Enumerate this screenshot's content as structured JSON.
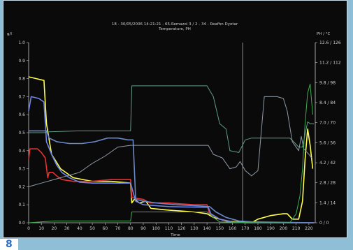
{
  "figure_number": "8",
  "chart_data": {
    "type": "line",
    "title": "18 - 30/05/2006 14:21:21 - 65-Remazol 3 / 2 - 34 - Reafhn Dyotar",
    "subtitle": "Temperature, PH",
    "xlabel": "Time",
    "ylabel_left": "g/l",
    "ylabel_right": "PH / °C",
    "xlim": [
      0,
      225
    ],
    "ylim": [
      0,
      1.0
    ],
    "grid": false,
    "x_ticks": [
      "0",
      "10",
      "20",
      "30",
      "40",
      "50",
      "60",
      "70",
      "80",
      "90",
      "100",
      "110",
      "120",
      "130",
      "140",
      "150",
      "160",
      "170",
      "180",
      "190",
      "200",
      "210",
      "220"
    ],
    "y_ticks_left": [
      "0.0",
      "0.1",
      "0.2",
      "0.3",
      "0.4",
      "0.5",
      "0.6",
      "0.7",
      "0.8",
      "0.9",
      "1.0"
    ],
    "y_ticks_right": [
      "0 / 0",
      "1.4 / 14",
      "2.8 / 28",
      "4.2 / 42",
      "5.6 / 56",
      "7.0 / 70",
      "8.4 / 84",
      "9.8 / 98",
      "11.2 / 112",
      "12.6 / 126"
    ],
    "y_ticks_right_values": [
      0,
      0.111,
      0.222,
      0.333,
      0.444,
      0.556,
      0.667,
      0.778,
      0.889,
      1.0
    ],
    "cursor_x": 168,
    "colors": {
      "background": "#0a0a0a",
      "axis": "#c8c8c8",
      "text": "#d0d0d0"
    },
    "series": [
      {
        "color": "#ffff4a",
        "points": [
          [
            0,
            0.81
          ],
          [
            6,
            0.8
          ],
          [
            12,
            0.79
          ],
          [
            14,
            0.55
          ],
          [
            18,
            0.38
          ],
          [
            25,
            0.3
          ],
          [
            35,
            0.25
          ],
          [
            50,
            0.23
          ],
          [
            65,
            0.23
          ],
          [
            80,
            0.22
          ],
          [
            81,
            0.11
          ],
          [
            83,
            0.13
          ],
          [
            87,
            0.11
          ],
          [
            92,
            0.12
          ],
          [
            96,
            0.08
          ],
          [
            110,
            0.07
          ],
          [
            130,
            0.06
          ],
          [
            140,
            0.05
          ],
          [
            145,
            0.03
          ],
          [
            155,
            0.01
          ],
          [
            175,
            0.0
          ],
          [
            180,
            0.02
          ],
          [
            190,
            0.04
          ],
          [
            200,
            0.05
          ],
          [
            203,
            0.05
          ],
          [
            207,
            0.02
          ],
          [
            212,
            0.02
          ],
          [
            215,
            0.12
          ],
          [
            217,
            0.35
          ],
          [
            219,
            0.52
          ],
          [
            221,
            0.43
          ],
          [
            223,
            0.3
          ]
        ]
      },
      {
        "color": "#e83030",
        "points": [
          [
            0,
            0.35
          ],
          [
            1,
            0.41
          ],
          [
            7,
            0.41
          ],
          [
            10,
            0.39
          ],
          [
            13,
            0.36
          ],
          [
            15,
            0.25
          ],
          [
            16,
            0.28
          ],
          [
            19,
            0.28
          ],
          [
            22,
            0.26
          ],
          [
            26,
            0.24
          ],
          [
            35,
            0.23
          ],
          [
            50,
            0.23
          ],
          [
            65,
            0.24
          ],
          [
            80,
            0.24
          ],
          [
            81,
            0.14
          ],
          [
            90,
            0.13
          ],
          [
            95,
            0.11
          ],
          [
            110,
            0.11
          ],
          [
            130,
            0.1
          ],
          [
            140,
            0.1
          ],
          [
            142,
            0.05
          ],
          [
            150,
            0.02
          ],
          [
            160,
            0.005
          ],
          [
            170,
            0.0
          ],
          [
            200,
            0.0
          ],
          [
            224,
            0.0
          ]
        ]
      },
      {
        "color": "#6f86e8",
        "points": [
          [
            0,
            0.62
          ],
          [
            2,
            0.7
          ],
          [
            8,
            0.69
          ],
          [
            12,
            0.67
          ],
          [
            14,
            0.45
          ],
          [
            18,
            0.38
          ],
          [
            22,
            0.32
          ],
          [
            26,
            0.28
          ],
          [
            32,
            0.25
          ],
          [
            40,
            0.225
          ],
          [
            50,
            0.22
          ],
          [
            60,
            0.22
          ],
          [
            70,
            0.22
          ],
          [
            80,
            0.22
          ],
          [
            82,
            0.17
          ],
          [
            84,
            0.12
          ],
          [
            90,
            0.1
          ],
          [
            100,
            0.095
          ],
          [
            110,
            0.09
          ],
          [
            120,
            0.088
          ],
          [
            130,
            0.087
          ],
          [
            141,
            0.086
          ],
          [
            143,
            0.05
          ],
          [
            150,
            0.02
          ],
          [
            160,
            0.005
          ],
          [
            170,
            0.0
          ],
          [
            224,
            0.0
          ]
        ]
      },
      {
        "color": "#6a88c8",
        "points": [
          [
            0,
            0.51
          ],
          [
            14,
            0.51
          ],
          [
            16,
            0.47
          ],
          [
            22,
            0.45
          ],
          [
            32,
            0.44
          ],
          [
            42,
            0.44
          ],
          [
            52,
            0.45
          ],
          [
            62,
            0.47
          ],
          [
            70,
            0.47
          ],
          [
            78,
            0.46
          ],
          [
            82,
            0.46
          ],
          [
            84,
            0.13
          ],
          [
            90,
            0.12
          ],
          [
            100,
            0.11
          ],
          [
            115,
            0.1
          ],
          [
            130,
            0.095
          ],
          [
            142,
            0.09
          ],
          [
            147,
            0.06
          ],
          [
            155,
            0.03
          ],
          [
            165,
            0.01
          ],
          [
            175,
            0.005
          ],
          [
            224,
            0.0
          ]
        ]
      },
      {
        "color": "#5f9e85",
        "points": [
          [
            0,
            0.5
          ],
          [
            12,
            0.5
          ],
          [
            16,
            0.505
          ],
          [
            40,
            0.51
          ],
          [
            60,
            0.51
          ],
          [
            80,
            0.51
          ],
          [
            81,
            0.76
          ],
          [
            100,
            0.76
          ],
          [
            120,
            0.76
          ],
          [
            140,
            0.76
          ],
          [
            145,
            0.7
          ],
          [
            150,
            0.55
          ],
          [
            155,
            0.52
          ],
          [
            158,
            0.4
          ],
          [
            165,
            0.39
          ],
          [
            170,
            0.46
          ],
          [
            175,
            0.47
          ],
          [
            180,
            0.47
          ],
          [
            190,
            0.47
          ],
          [
            200,
            0.47
          ],
          [
            205,
            0.47
          ],
          [
            208,
            0.45
          ],
          [
            212,
            0.42
          ],
          [
            215,
            0.42
          ],
          [
            219,
            0.56
          ],
          [
            221,
            0.55
          ],
          [
            224,
            0.55
          ]
        ]
      },
      {
        "color": "#8f9aa6",
        "points": [
          [
            0,
            0.2
          ],
          [
            10,
            0.22
          ],
          [
            20,
            0.24
          ],
          [
            30,
            0.26
          ],
          [
            40,
            0.28
          ],
          [
            50,
            0.33
          ],
          [
            60,
            0.37
          ],
          [
            70,
            0.42
          ],
          [
            80,
            0.43
          ],
          [
            100,
            0.43
          ],
          [
            120,
            0.43
          ],
          [
            141,
            0.43
          ],
          [
            145,
            0.38
          ],
          [
            152,
            0.36
          ],
          [
            158,
            0.3
          ],
          [
            163,
            0.31
          ],
          [
            166,
            0.34
          ],
          [
            170,
            0.29
          ],
          [
            175,
            0.26
          ],
          [
            180,
            0.29
          ],
          [
            185,
            0.7
          ],
          [
            195,
            0.7
          ],
          [
            200,
            0.69
          ],
          [
            203,
            0.62
          ],
          [
            207,
            0.45
          ],
          [
            212,
            0.4
          ],
          [
            214,
            0.48
          ],
          [
            216,
            0.41
          ],
          [
            220,
            0.38
          ],
          [
            222,
            0.36
          ]
        ]
      },
      {
        "color": "#3fae52",
        "points": [
          [
            0,
            0.0
          ],
          [
            20,
            0.01
          ],
          [
            40,
            0.01
          ],
          [
            60,
            0.01
          ],
          [
            80,
            0.01
          ],
          [
            81,
            0.06
          ],
          [
            90,
            0.06
          ],
          [
            120,
            0.06
          ],
          [
            140,
            0.06
          ],
          [
            145,
            0.03
          ],
          [
            150,
            0.005
          ],
          [
            180,
            0.0
          ],
          [
            200,
            0.0
          ],
          [
            205,
            0.0
          ],
          [
            210,
            0.05
          ],
          [
            213,
            0.15
          ],
          [
            215,
            0.3
          ],
          [
            217,
            0.55
          ],
          [
            219,
            0.72
          ],
          [
            221,
            0.77
          ],
          [
            223,
            0.6
          ]
        ]
      }
    ]
  }
}
